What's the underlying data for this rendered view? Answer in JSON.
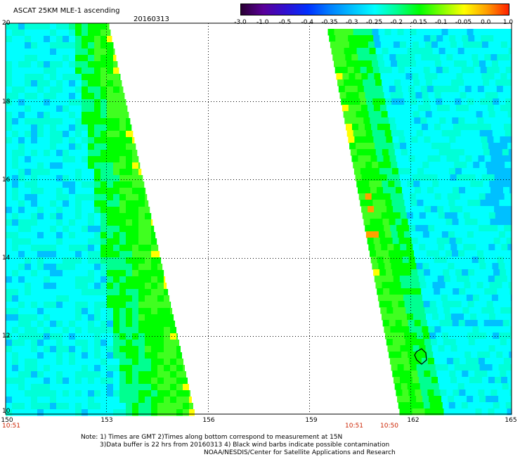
{
  "header": {
    "title": "ASCAT 25KM MLE-1 ascending",
    "date": "20160313"
  },
  "colorbar": {
    "labels": [
      "-3.0",
      "-1.0",
      "-0.5",
      "-0.4",
      "-0.35",
      "-0.3",
      "-0.25",
      "-0.2",
      "-0.15",
      "-0.1",
      "-0.05",
      "0.0",
      "1.0"
    ],
    "colors": [
      "#2a0033",
      "#5a0099",
      "#3010d0",
      "#0030ff",
      "#0080ff",
      "#00c0ff",
      "#00ffff",
      "#00ff90",
      "#00ff00",
      "#80ff00",
      "#ffff00",
      "#ffa000",
      "#ff2000"
    ]
  },
  "map": {
    "lat_labels": [
      "20",
      "18",
      "16",
      "14",
      "12",
      "10"
    ],
    "lon_labels": [
      "150",
      "153",
      "156",
      "159",
      "162",
      "165"
    ],
    "lat_range": [
      10,
      20
    ],
    "lon_range": [
      150,
      165
    ],
    "swaths": [
      {
        "name": "western-swath",
        "time_left": "10:51"
      },
      {
        "name": "eastern-swath",
        "time_left": "10:51",
        "time_right": "10:50"
      }
    ],
    "contamination_marker_lon": 162.2,
    "contamination_marker_lat": 11.6
  },
  "footer": {
    "line1": "Note: 1) Times are GMT 2)Times along bottom correspond to measurement at 15N",
    "line2": "3)Data buffer is 22 hrs from 20160313 4) Black wind barbs indicate possible contamination",
    "line3": "NOAA/NESDIS/Center for Satellite Applications and Research"
  },
  "colors": {
    "cyan": "#00ffff",
    "green": "#00ff00",
    "sea_green": "#00ff90",
    "light_blue": "#00c0ff",
    "yellow": "#ffff00",
    "orange": "#ffa000",
    "time_label": "#cc2200"
  }
}
